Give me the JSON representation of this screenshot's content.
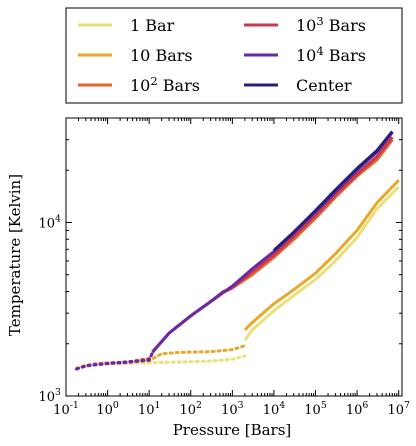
{
  "chart_data": {
    "type": "line",
    "xlabel": "Pressure [Bars]",
    "ylabel": "Temperature [Kelvin]",
    "xscale": "log",
    "yscale": "log",
    "xlim": [
      0.1,
      12000000
    ],
    "ylim": [
      1000,
      40000
    ],
    "grid": false,
    "legend_position": "top",
    "x_ticks": [
      {
        "value": 0.1,
        "base": "10",
        "exp": "-1"
      },
      {
        "value": 1,
        "base": "10",
        "exp": "0"
      },
      {
        "value": 10,
        "base": "10",
        "exp": "1"
      },
      {
        "value": 100,
        "base": "10",
        "exp": "2"
      },
      {
        "value": 1000,
        "base": "10",
        "exp": "3"
      },
      {
        "value": 10000,
        "base": "10",
        "exp": "4"
      },
      {
        "value": 100000,
        "base": "10",
        "exp": "5"
      },
      {
        "value": 1000000,
        "base": "10",
        "exp": "6"
      },
      {
        "value": 10000000,
        "base": "10",
        "exp": "7"
      }
    ],
    "y_ticks": [
      {
        "value": 1000,
        "base": "10",
        "exp": "3"
      },
      {
        "value": 10000,
        "base": "10",
        "exp": "4"
      }
    ],
    "legend_entries": [
      {
        "text": "1 Bar",
        "base": "",
        "exp": "",
        "suffix": "",
        "color": "#e8e07a"
      },
      {
        "text": "10 Bars",
        "base": "",
        "exp": "",
        "suffix": "",
        "color": "#e6a92a"
      },
      {
        "text": "",
        "base": "10",
        "exp": "2",
        "suffix": " Bars",
        "color": "#ea6328"
      },
      {
        "text": "",
        "base": "10",
        "exp": "3",
        "suffix": " Bars",
        "color": "#c8384e"
      },
      {
        "text": "",
        "base": "10",
        "exp": "4",
        "suffix": " Bars",
        "color": "#6a2aa8"
      },
      {
        "text": "Center",
        "base": "",
        "exp": "",
        "suffix": "",
        "color": "#2b1e78"
      }
    ],
    "series": [
      {
        "name": "1 Bar",
        "color": "#e8e07a",
        "dotted": [
          [
            0.18,
            1440
          ],
          [
            0.3,
            1480
          ],
          [
            0.5,
            1510
          ],
          [
            1,
            1530
          ],
          [
            3,
            1545
          ],
          [
            10,
            1555
          ],
          [
            30,
            1565
          ],
          [
            100,
            1575
          ],
          [
            300,
            1590
          ],
          [
            1000,
            1630
          ],
          [
            2000,
            1700
          ]
        ],
        "solid": [
          [
            2000,
            2100
          ],
          [
            3000,
            2400
          ],
          [
            10000,
            3100
          ],
          [
            30000,
            3800
          ],
          [
            100000,
            4700
          ],
          [
            300000,
            6000
          ],
          [
            1000000,
            8200
          ],
          [
            3000000,
            12000
          ],
          [
            10000000,
            16000
          ]
        ]
      },
      {
        "name": "10 Bars",
        "color": "#e6a92a",
        "dotted": [
          [
            0.18,
            1440
          ],
          [
            0.3,
            1490
          ],
          [
            0.5,
            1520
          ],
          [
            1,
            1545
          ],
          [
            3,
            1560
          ],
          [
            10,
            1600
          ],
          [
            20,
            1750
          ],
          [
            50,
            1780
          ],
          [
            100,
            1790
          ],
          [
            300,
            1800
          ],
          [
            1000,
            1850
          ],
          [
            2000,
            1950
          ]
        ],
        "solid": [
          [
            2000,
            2400
          ],
          [
            3000,
            2650
          ],
          [
            10000,
            3400
          ],
          [
            30000,
            4100
          ],
          [
            100000,
            5100
          ],
          [
            300000,
            6600
          ],
          [
            1000000,
            9000
          ],
          [
            3000000,
            13000
          ],
          [
            10000000,
            17500
          ]
        ]
      },
      {
        "name": "10^2 Bars",
        "color": "#ea6328",
        "dotted": [
          [
            0.18,
            1440
          ],
          [
            0.3,
            1500
          ],
          [
            0.5,
            1530
          ],
          [
            1,
            1550
          ],
          [
            3,
            1570
          ],
          [
            10,
            1650
          ]
        ],
        "solid": [
          [
            12,
            1800
          ],
          [
            30,
            2300
          ],
          [
            100,
            2900
          ],
          [
            300,
            3500
          ],
          [
            600,
            4000
          ],
          [
            800,
            4100
          ],
          [
            1000,
            4200
          ],
          [
            3000,
            5000
          ],
          [
            10000,
            6300
          ],
          [
            30000,
            8000
          ],
          [
            100000,
            10600
          ],
          [
            300000,
            14000
          ],
          [
            1000000,
            18500
          ],
          [
            3000000,
            23000
          ],
          [
            7000000,
            30000
          ]
        ]
      },
      {
        "name": "10^3 Bars",
        "color": "#c8384e",
        "dotted": [
          [
            0.18,
            1430
          ],
          [
            0.3,
            1490
          ],
          [
            0.5,
            1520
          ],
          [
            1,
            1540
          ],
          [
            3,
            1560
          ],
          [
            10,
            1620
          ],
          [
            12,
            1780
          ]
        ],
        "solid": [
          [
            12,
            1790
          ],
          [
            30,
            2300
          ],
          [
            100,
            2900
          ],
          [
            300,
            3500
          ],
          [
            600,
            3950
          ],
          [
            1000,
            4200
          ],
          [
            3000,
            5200
          ],
          [
            10000,
            6500
          ],
          [
            30000,
            8300
          ],
          [
            100000,
            11000
          ],
          [
            300000,
            14500
          ],
          [
            1000000,
            19000
          ],
          [
            3000000,
            24000
          ],
          [
            7000000,
            31000
          ]
        ]
      },
      {
        "name": "10^4 Bars",
        "color": "#6a2aa8",
        "dotted": [
          [
            0.18,
            1430
          ],
          [
            0.3,
            1490
          ],
          [
            1,
            1540
          ],
          [
            10,
            1610
          ],
          [
            12,
            1780
          ]
        ],
        "solid": [
          [
            12,
            1790
          ],
          [
            30,
            2300
          ],
          [
            100,
            2900
          ],
          [
            300,
            3500
          ],
          [
            600,
            3950
          ],
          [
            1000,
            4300
          ],
          [
            3000,
            5400
          ],
          [
            10000,
            6800
          ],
          [
            30000,
            8700
          ],
          [
            100000,
            11500
          ],
          [
            300000,
            15000
          ],
          [
            1000000,
            20000
          ],
          [
            3000000,
            25500
          ],
          [
            7000000,
            33000
          ]
        ]
      },
      {
        "name": "Center",
        "color": "#2b1e78",
        "dotted": [],
        "solid": [
          [
            10000,
            6900
          ],
          [
            30000,
            8800
          ],
          [
            100000,
            11700
          ],
          [
            300000,
            15400
          ],
          [
            1000000,
            20500
          ],
          [
            3000000,
            26000
          ],
          [
            7000000,
            33500
          ]
        ]
      }
    ]
  }
}
